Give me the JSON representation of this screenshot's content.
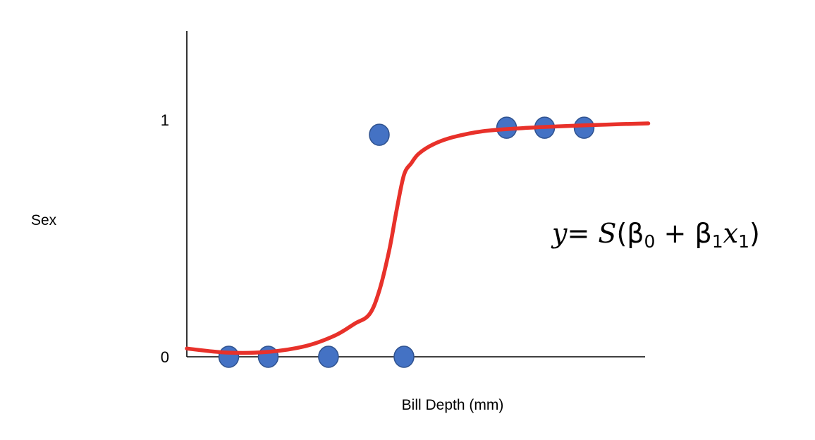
{
  "chart_data": {
    "type": "scatter",
    "xlabel": "Bill Depth (mm)",
    "ylabel": "Sex",
    "yticks": [
      "0",
      "1"
    ],
    "ylim": [
      0,
      1.38
    ],
    "xlim": [
      0,
      1
    ],
    "grid": false,
    "legend": "none",
    "colors": {
      "points": "#4472c4",
      "curve": "#e8312a",
      "axis": "#000000"
    },
    "points": [
      {
        "x": 0.085,
        "y": 0
      },
      {
        "x": 0.165,
        "y": 0
      },
      {
        "x": 0.287,
        "y": 0
      },
      {
        "x": 0.44,
        "y": 0
      },
      {
        "x": 0.39,
        "y": 0.94
      },
      {
        "x": 0.648,
        "y": 0.97
      },
      {
        "x": 0.725,
        "y": 0.97
      },
      {
        "x": 0.805,
        "y": 0.97
      }
    ],
    "curve": {
      "x": [
        0.0,
        0.08,
        0.16,
        0.24,
        0.3,
        0.34,
        0.37,
        0.39,
        0.41,
        0.425,
        0.44,
        0.455,
        0.47,
        0.5,
        0.54,
        0.6,
        0.68,
        0.76,
        0.85,
        0.935
      ],
      "y": [
        0.035,
        0.018,
        0.02,
        0.045,
        0.09,
        0.14,
        0.18,
        0.28,
        0.45,
        0.62,
        0.77,
        0.82,
        0.86,
        0.9,
        0.93,
        0.955,
        0.968,
        0.976,
        0.983,
        0.988
      ]
    },
    "annotation": {
      "y": "y",
      "equals": "=",
      "fn": "S",
      "open": "(",
      "b0": "β",
      "sub0": "0",
      "plus": "+",
      "b1": "β",
      "sub1": "1",
      "x": "x",
      "subx": "1",
      "close": ")"
    }
  }
}
